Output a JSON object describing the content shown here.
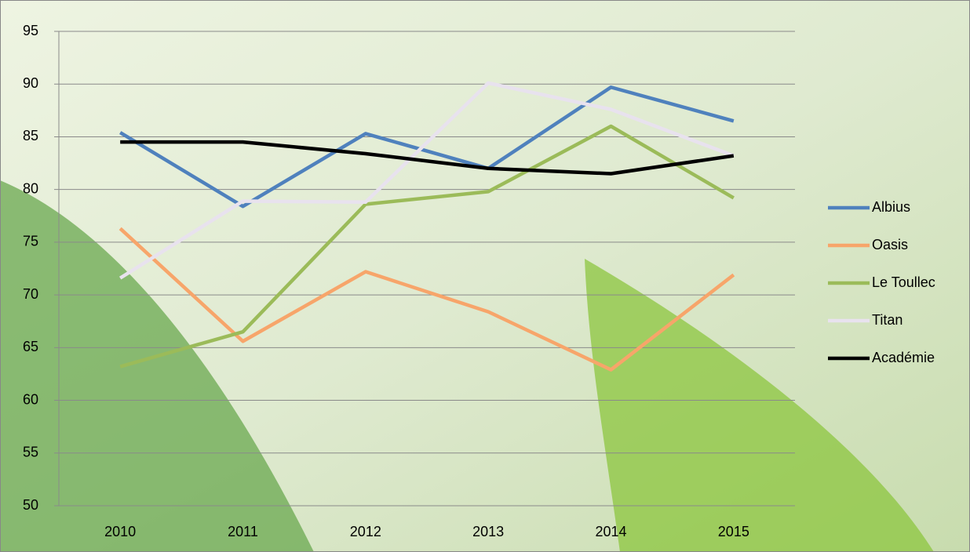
{
  "chart_data": {
    "type": "line",
    "categories": [
      "2010",
      "2011",
      "2012",
      "2013",
      "2014",
      "2015"
    ],
    "series": [
      {
        "name": "Albius",
        "color": "#4f81bd",
        "values": [
          85.4,
          78.4,
          85.3,
          82,
          89.7,
          86.5
        ]
      },
      {
        "name": "Oasis",
        "color": "#f7a56a",
        "values": [
          76.3,
          65.6,
          72.2,
          68.4,
          62.9,
          71.9
        ]
      },
      {
        "name": "Le Toullec",
        "color": "#9bbb59",
        "values": [
          63.2,
          66.5,
          78.6,
          79.8,
          86,
          79.2
        ]
      },
      {
        "name": "Titan",
        "color": "#e8e2ee",
        "values": [
          71.6,
          78.9,
          78.8,
          90.1,
          87.6,
          83.2
        ]
      },
      {
        "name": "Académie",
        "color": "#000000",
        "values": [
          84.5,
          84.5,
          83.4,
          82,
          81.5,
          83.2
        ]
      }
    ],
    "ylim": [
      50,
      95
    ],
    "yticks": [
      50,
      55,
      60,
      65,
      70,
      75,
      80,
      85,
      90,
      95
    ],
    "grid": true,
    "legend": "right"
  }
}
